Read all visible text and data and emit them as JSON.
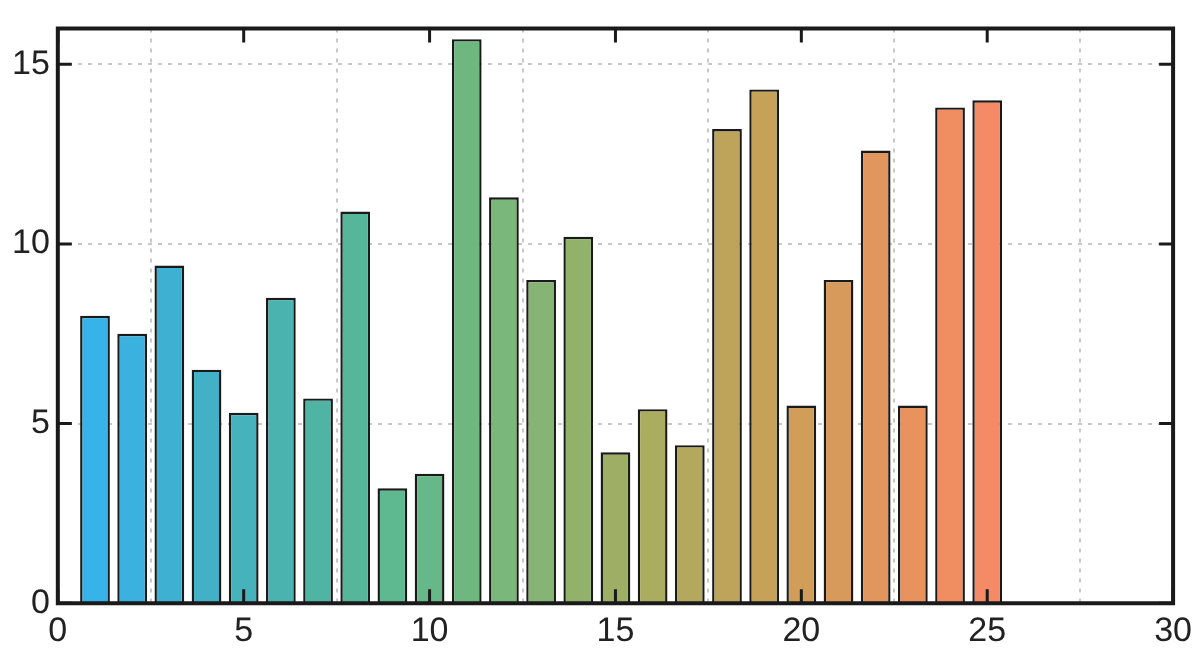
{
  "chart_data": {
    "type": "bar",
    "x": [
      1,
      2,
      3,
      4,
      5,
      6,
      7,
      8,
      9,
      10,
      11,
      12,
      13,
      14,
      15,
      16,
      17,
      18,
      19,
      20,
      21,
      22,
      23,
      24,
      25
    ],
    "values": [
      8.0,
      7.5,
      9.4,
      6.5,
      5.3,
      8.5,
      5.7,
      10.9,
      3.2,
      3.6,
      15.7,
      11.3,
      9.0,
      10.2,
      4.2,
      5.4,
      4.4,
      13.2,
      14.3,
      5.5,
      9.0,
      12.6,
      5.5,
      13.8,
      14.0
    ],
    "colors": [
      "#36b3e8",
      "#3ab1de",
      "#3eb0d2",
      "#42b1c6",
      "#46b2bc",
      "#4ab3b0",
      "#50b4a4",
      "#56b69a",
      "#5eb890",
      "#66b888",
      "#6eb880",
      "#7ab77a",
      "#86b474",
      "#92b26c",
      "#9eae64",
      "#aaac60",
      "#b4a85c",
      "#bea45a",
      "#c6a258",
      "#d09e58",
      "#d89a5a",
      "#e0965c",
      "#e8925e",
      "#f08e62",
      "#f58a66"
    ],
    "xlim": [
      0,
      30
    ],
    "xticks": [
      0,
      5,
      10,
      15,
      20,
      25,
      30
    ],
    "ylim": [
      0,
      16
    ],
    "yticks": [
      0,
      5,
      10,
      15
    ],
    "grid": true
  }
}
